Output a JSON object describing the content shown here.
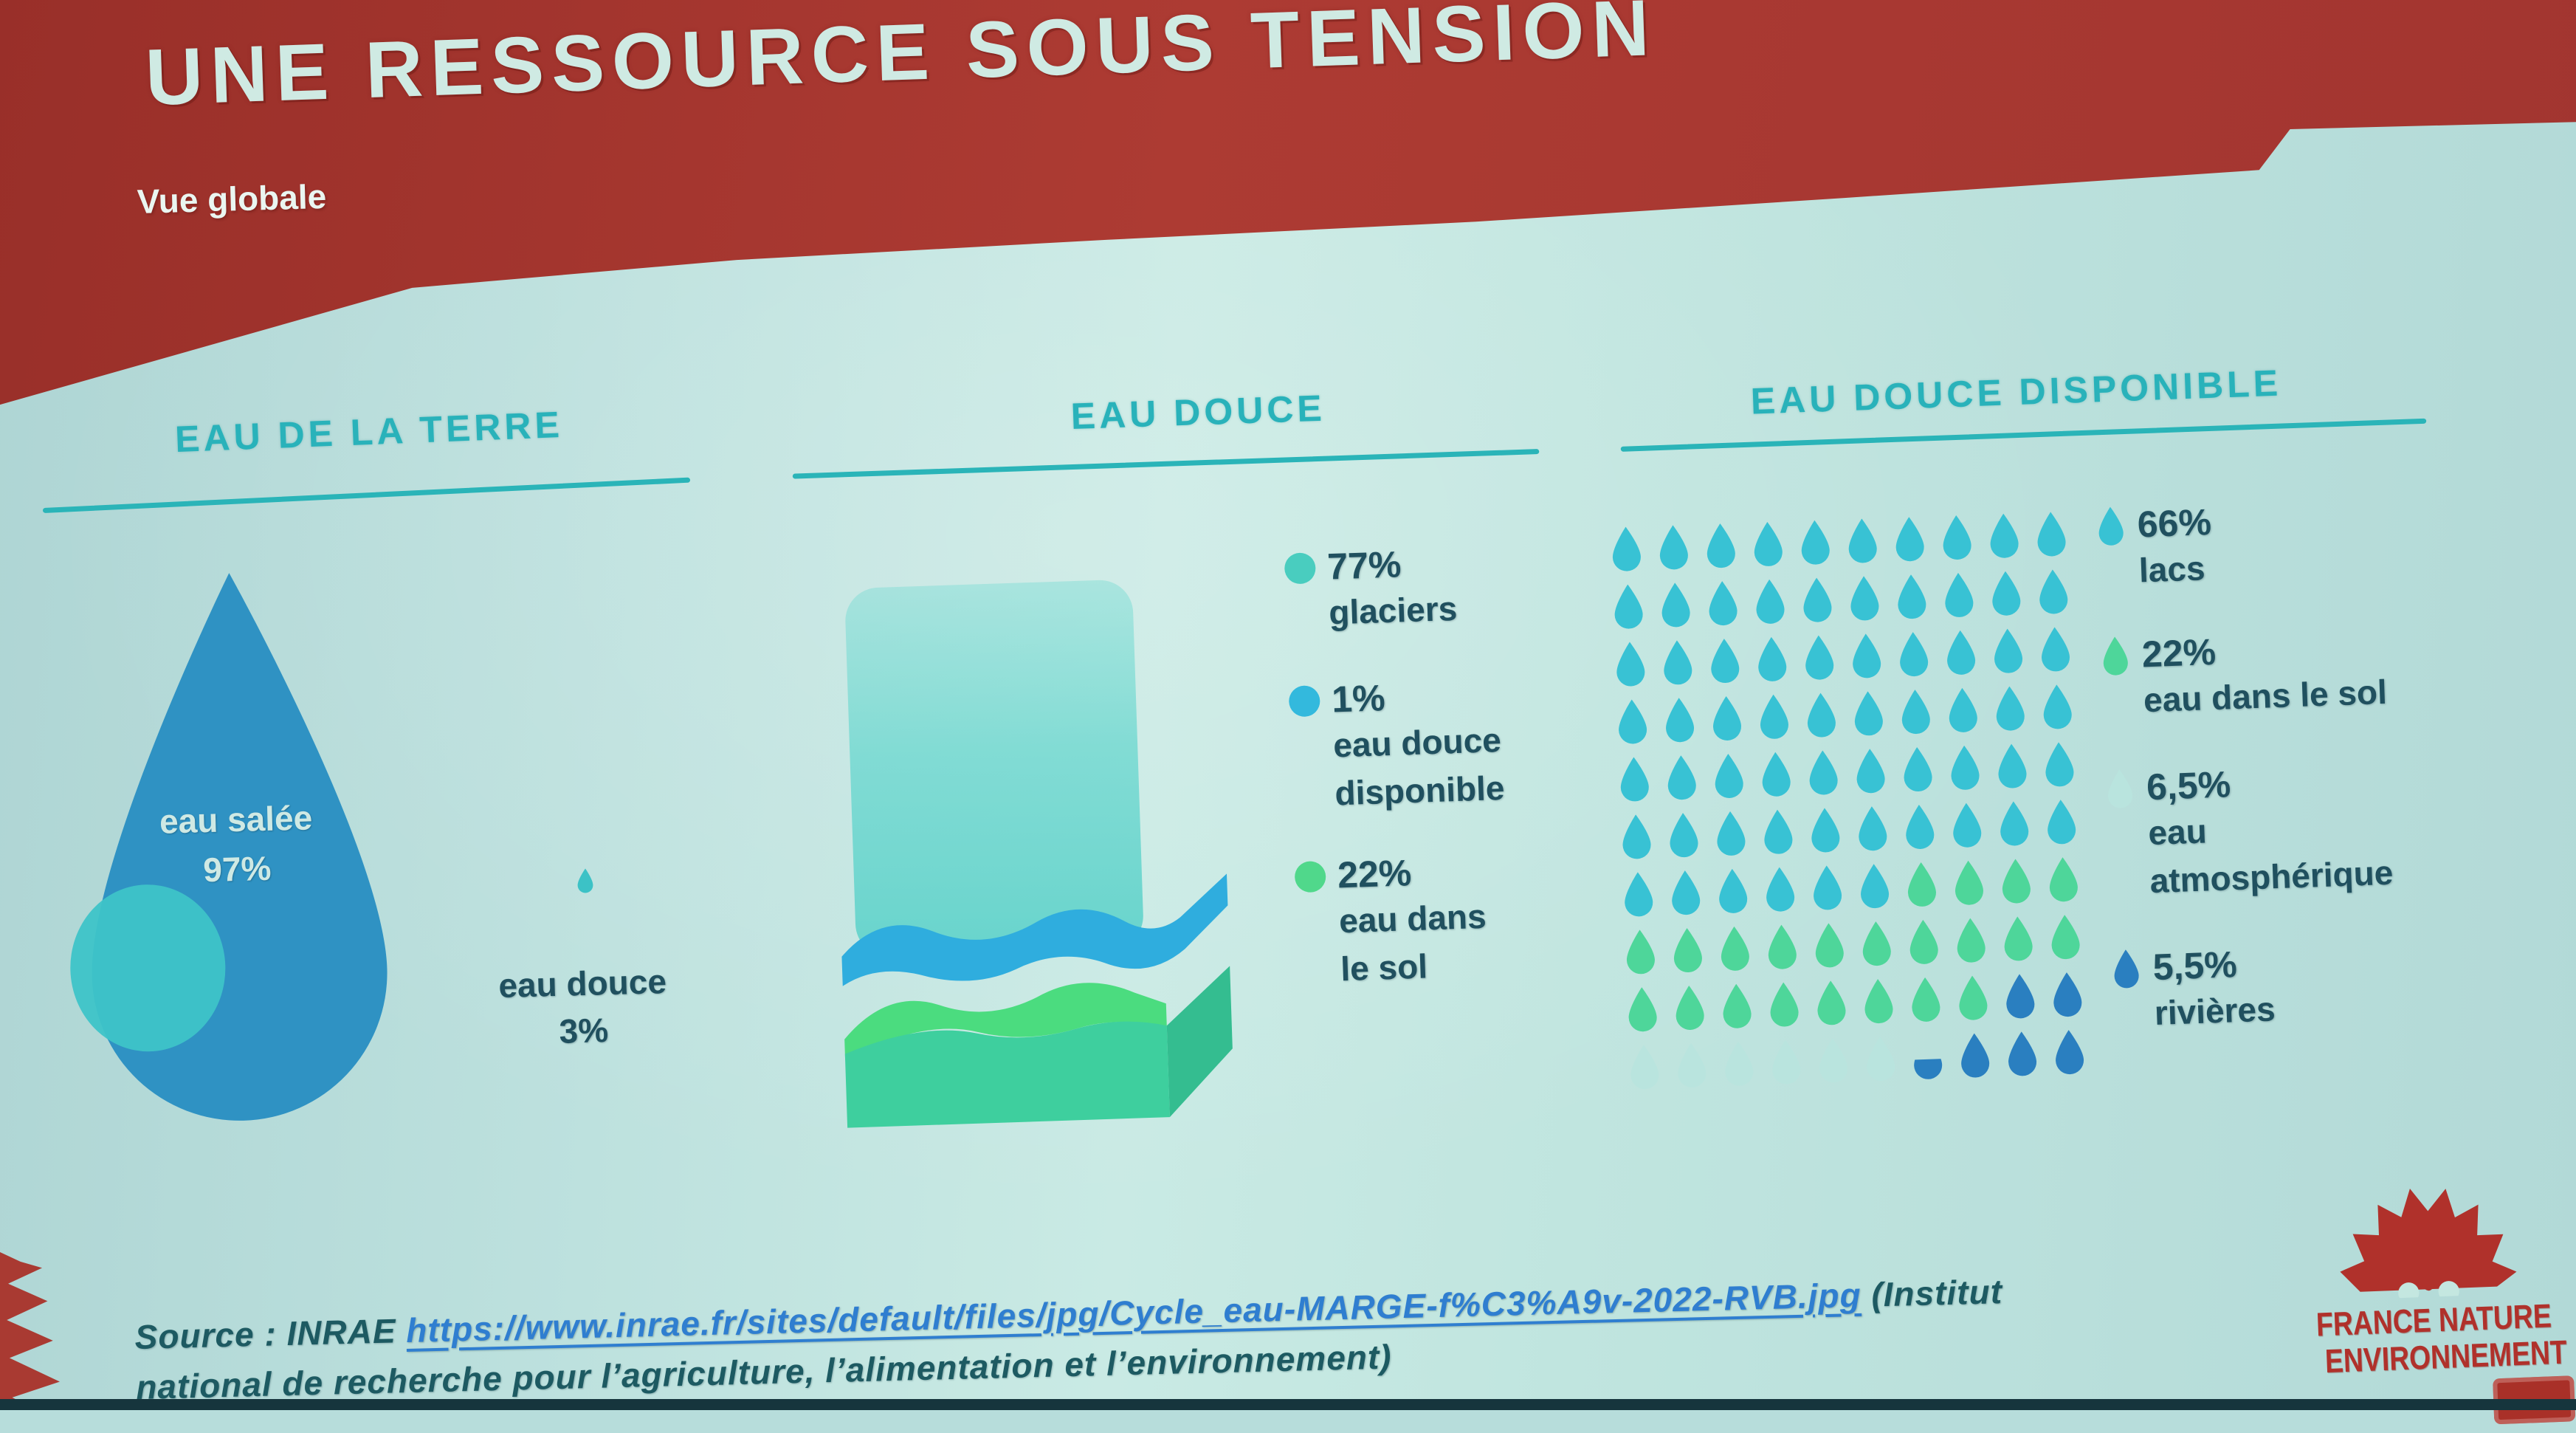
{
  "header": {
    "title": "UNE RESSOURCE SOUS TENSION",
    "subtitle": "Vue globale"
  },
  "earth": {
    "heading": "EAU DE LA TERRE",
    "salt_label": "eau salée",
    "salt_value": "97%",
    "fresh_label": "eau douce",
    "fresh_value": "3%"
  },
  "fresh": {
    "heading": "EAU DOUCE",
    "legend": [
      {
        "value": "77%",
        "lines": [
          "glaciers"
        ],
        "color": "#49cdbf"
      },
      {
        "value": "1%",
        "lines": [
          "eau douce",
          "disponible"
        ],
        "color": "#33b9dd"
      },
      {
        "value": "22%",
        "lines": [
          "eau dans",
          "le sol"
        ],
        "color": "#50d88b"
      }
    ]
  },
  "available": {
    "heading": "EAU DOUCE DISPONIBLE",
    "legend": [
      {
        "value": "66%",
        "lines": [
          "lacs"
        ],
        "color": "#38c2d4"
      },
      {
        "value": "22%",
        "lines": [
          "eau dans le sol"
        ],
        "color": "#4ed69a"
      },
      {
        "value": "6,5%",
        "lines": [
          "eau",
          "atmosphérique"
        ],
        "color": "#b9e4de"
      },
      {
        "value": "5,5%",
        "lines": [
          "rivières"
        ],
        "color": "#2a7fc0"
      }
    ],
    "grid": {
      "rows": [
        "LLLLLLLLLL",
        "LLLLLLLLLL",
        "LLLLLLLLLL",
        "LLLLLLLLLL",
        "LLLLLLLLLL",
        "LLLLLLLLLL",
        "LLLLLLSSSS",
        "SSSSSSSSSS",
        "SSSSSSSSRR",
        "AAAAAAHRRR"
      ],
      "colors": {
        "L": "#38c2d4",
        "S": "#4ed69a",
        "R": "#2a7fc0",
        "A": "#b9e4de",
        "H": "#2a7fc0"
      }
    }
  },
  "source": {
    "prefix": "Source : INRAE ",
    "link": "https://www.inrae.fr/sites/default/files/jpg/Cycle_eau-MARGE-f%C3%A9v-2022-RVB.jpg",
    "suffix": " (Institut",
    "line2": "national de recherche pour l’agriculture, l’alimentation et l’environnement)"
  },
  "logo": {
    "line1": "FRANCE NATURE",
    "line2": "ENVIRONNEMENT"
  },
  "colors": {
    "header_red": "#a73a31",
    "heading_teal": "#29b2ba",
    "text_navy": "#20505f",
    "link_blue": "#2f7ed0",
    "logo_red": "#b0312b",
    "salt_drop_blue": "#2f92c3"
  },
  "chart_data": [
    {
      "type": "pie",
      "title": "EAU DE LA TERRE",
      "unit": "%",
      "slices": [
        {
          "label": "eau salée",
          "value": 97,
          "color": "#2f92c3"
        },
        {
          "label": "eau douce",
          "value": 3,
          "color": "#3cc2c6"
        }
      ]
    },
    {
      "type": "pie",
      "title": "EAU DOUCE",
      "unit": "%",
      "slices": [
        {
          "label": "glaciers",
          "value": 77,
          "color": "#49cdbf"
        },
        {
          "label": "eau douce disponible",
          "value": 1,
          "color": "#33b9dd"
        },
        {
          "label": "eau dans le sol",
          "value": 22,
          "color": "#50d88b"
        }
      ]
    },
    {
      "type": "pie",
      "title": "EAU DOUCE DISPONIBLE",
      "unit": "%",
      "note_layout": "pictogramme gaufre 10x10 gouttes",
      "slices": [
        {
          "label": "lacs",
          "value": 66,
          "color": "#38c2d4"
        },
        {
          "label": "eau dans le sol",
          "value": 22,
          "color": "#4ed69a"
        },
        {
          "label": "eau atmosphérique",
          "value": 6.5,
          "color": "#b9e4de"
        },
        {
          "label": "rivières",
          "value": 5.5,
          "color": "#2a7fc0"
        }
      ]
    }
  ]
}
